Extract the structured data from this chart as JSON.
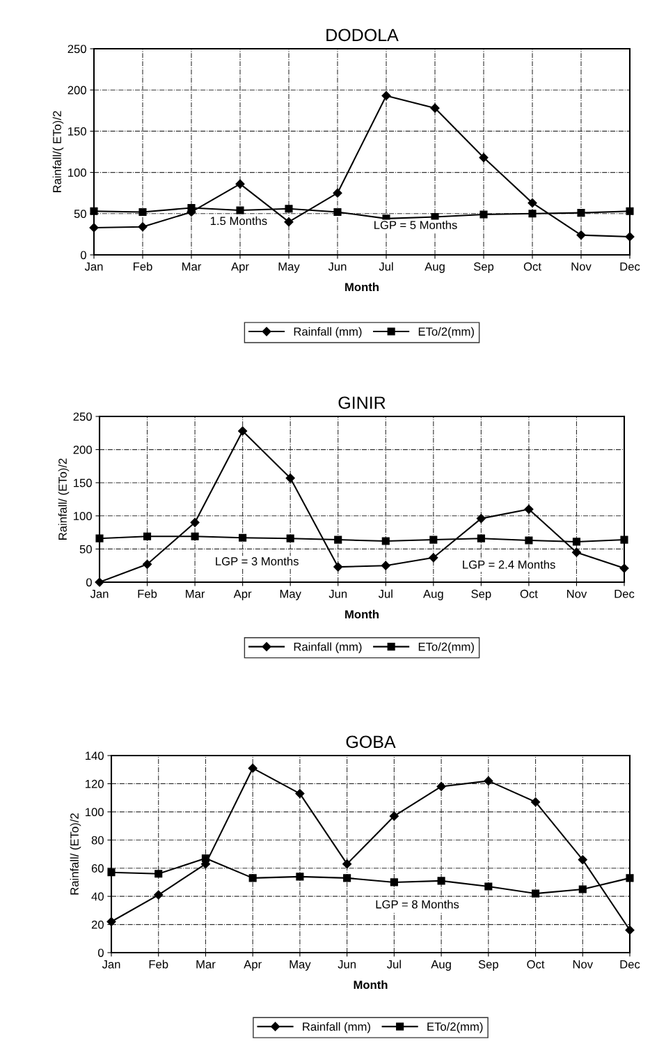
{
  "chart_data": [
    {
      "type": "line",
      "title": "DODOLA",
      "xlabel": "Month",
      "ylabel": "Rainfall/( ETo)/2",
      "categories": [
        "Jan",
        "Feb",
        "Mar",
        "Apr",
        "May",
        "Jun",
        "Jul",
        "Aug",
        "Sep",
        "Oct",
        "Nov",
        "Dec"
      ],
      "ylim": [
        0,
        250
      ],
      "yticks": [
        0,
        50,
        100,
        150,
        200,
        250
      ],
      "grid": true,
      "legend": "bottom",
      "series": [
        {
          "name": "Rainfall (mm)",
          "color": "#000000",
          "marker": "diamond",
          "values": [
            33,
            34,
            52,
            86,
            40,
            75,
            193,
            178,
            118,
            63,
            24,
            22
          ]
        },
        {
          "name": "ETo/2(mm)",
          "color": "#000000",
          "marker": "square",
          "values": [
            53,
            52,
            57,
            54,
            56,
            52,
            44,
            46,
            49,
            50,
            51,
            53
          ]
        }
      ],
      "annotations": [
        "1.5 Months",
        "LGP = 5 Months"
      ]
    },
    {
      "type": "line",
      "title": "GINIR",
      "xlabel": "Month",
      "ylabel": "Rainfall/ (ETo)/2",
      "categories": [
        "Jan",
        "Feb",
        "Mar",
        "Apr",
        "May",
        "Jun",
        "Jul",
        "Aug",
        "Sep",
        "Oct",
        "Nov",
        "Dec"
      ],
      "ylim": [
        0,
        250
      ],
      "yticks": [
        0,
        50,
        100,
        150,
        200,
        250
      ],
      "grid": true,
      "legend": "bottom",
      "series": [
        {
          "name": "Rainfall (mm)",
          "color": "#000000",
          "marker": "diamond",
          "values": [
            0,
            27,
            90,
            228,
            157,
            23,
            25,
            37,
            96,
            110,
            45,
            21
          ]
        },
        {
          "name": "ETo/2(mm)",
          "color": "#000000",
          "marker": "square",
          "values": [
            66,
            69,
            69,
            67,
            66,
            64,
            62,
            64,
            66,
            63,
            61,
            64
          ]
        }
      ],
      "annotations": [
        "LGP = 3 Months",
        "LGP = 2.4 Months"
      ]
    },
    {
      "type": "line",
      "title": "GOBA",
      "xlabel": "Month",
      "ylabel": "Rainfall/ (ETo)/2",
      "categories": [
        "Jan",
        "Feb",
        "Mar",
        "Apr",
        "May",
        "Jun",
        "Jul",
        "Aug",
        "Sep",
        "Oct",
        "Nov",
        "Dec"
      ],
      "ylim": [
        0,
        140
      ],
      "yticks": [
        0,
        20,
        40,
        60,
        80,
        100,
        120,
        140
      ],
      "grid": true,
      "legend": "bottom",
      "series": [
        {
          "name": "Rainfall (mm)",
          "color": "#000000",
          "marker": "diamond",
          "values": [
            22,
            41,
            63,
            131,
            113,
            63,
            97,
            118,
            122,
            107,
            66,
            16
          ]
        },
        {
          "name": "ETo/2(mm)",
          "color": "#000000",
          "marker": "square",
          "values": [
            57,
            56,
            67,
            53,
            54,
            53,
            50,
            51,
            47,
            42,
            45,
            53
          ]
        }
      ],
      "annotations": [
        "LGP = 8 Months"
      ]
    }
  ]
}
